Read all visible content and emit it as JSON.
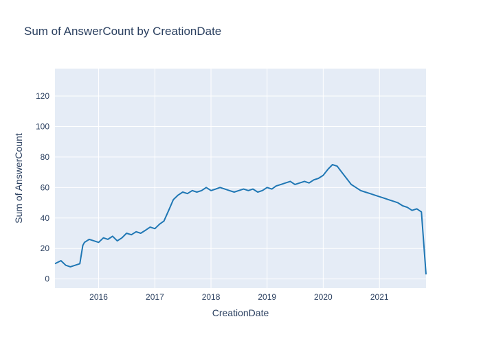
{
  "chart_data": {
    "type": "line",
    "title": "Sum of AnswerCount by CreationDate",
    "xlabel": "CreationDate",
    "ylabel": "Sum of AnswerCount",
    "xlim": [
      "2015-03-23",
      "2021-10-31"
    ],
    "ylim": [
      -6,
      138
    ],
    "x_ticks": [
      "2016",
      "2017",
      "2018",
      "2019",
      "2020",
      "2021"
    ],
    "y_ticks": [
      0,
      20,
      40,
      60,
      80,
      100,
      120
    ],
    "grid": true,
    "legend": "none",
    "colors": {
      "line": "#1f77b4",
      "plot_bg": "#e5ecf6",
      "grid": "#ffffff",
      "text": "#2a3f5f"
    },
    "series": [
      {
        "x": [
          "2015-03-23",
          "2015-05-01",
          "2015-06-01",
          "2015-07-01",
          "2015-08-01",
          "2015-09-01",
          "2015-09-20",
          "2015-10-01",
          "2015-11-01",
          "2015-12-01",
          "2016-01-01",
          "2016-02-01",
          "2016-03-01",
          "2016-04-01",
          "2016-05-01",
          "2016-06-01",
          "2016-07-01",
          "2016-08-01",
          "2016-09-01",
          "2016-10-01",
          "2016-11-01",
          "2016-12-01",
          "2017-01-01",
          "2017-02-01",
          "2017-03-01",
          "2017-04-01",
          "2017-05-01",
          "2017-06-01",
          "2017-07-01",
          "2017-08-01",
          "2017-09-01",
          "2017-10-01",
          "2017-11-01",
          "2017-12-01",
          "2018-01-01",
          "2018-02-01",
          "2018-03-01",
          "2018-04-01",
          "2018-05-01",
          "2018-06-01",
          "2018-07-01",
          "2018-08-01",
          "2018-09-01",
          "2018-10-01",
          "2018-11-01",
          "2018-12-01",
          "2019-01-01",
          "2019-02-01",
          "2019-03-01",
          "2019-04-01",
          "2019-05-01",
          "2019-06-01",
          "2019-07-01",
          "2019-08-01",
          "2019-09-01",
          "2019-10-01",
          "2019-11-01",
          "2019-12-01",
          "2020-01-01",
          "2020-02-01",
          "2020-03-01",
          "2020-04-01",
          "2020-05-01",
          "2020-06-01",
          "2020-07-01",
          "2020-08-01",
          "2020-09-01",
          "2020-10-01",
          "2020-11-01",
          "2020-12-01",
          "2021-01-01",
          "2021-02-01",
          "2021-03-01",
          "2021-04-01",
          "2021-05-01",
          "2021-06-01",
          "2021-07-01",
          "2021-08-01",
          "2021-09-01",
          "2021-10-01",
          "2021-10-31"
        ],
        "y": [
          10,
          12,
          9,
          8,
          9,
          10,
          22,
          24,
          26,
          25,
          24,
          27,
          26,
          28,
          25,
          27,
          30,
          29,
          31,
          30,
          32,
          34,
          33,
          36,
          38,
          45,
          52,
          55,
          57,
          56,
          58,
          57,
          58,
          60,
          58,
          59,
          60,
          59,
          58,
          57,
          58,
          59,
          58,
          59,
          57,
          58,
          60,
          59,
          61,
          62,
          63,
          64,
          62,
          63,
          64,
          63,
          65,
          66,
          68,
          72,
          75,
          74,
          70,
          66,
          62,
          60,
          58,
          57,
          56,
          55,
          54,
          53,
          52,
          51,
          50,
          48,
          47,
          45,
          46,
          44,
          3
        ]
      }
    ]
  }
}
